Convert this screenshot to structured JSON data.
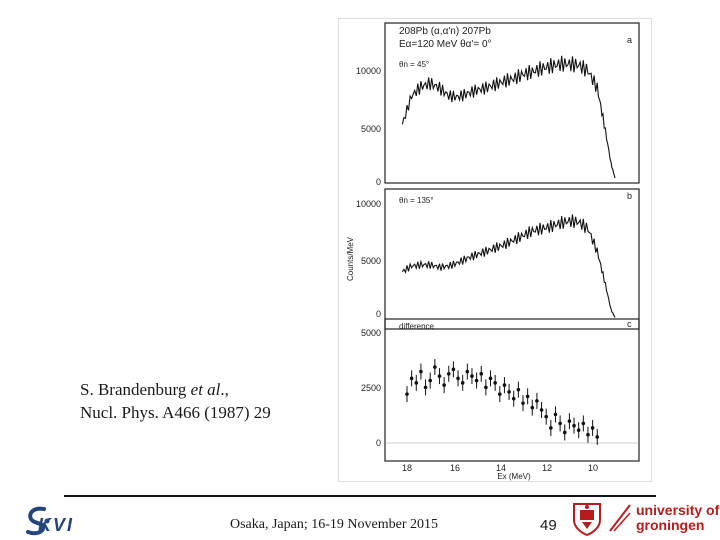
{
  "citation": {
    "line1_pre": "S. Brandenburg ",
    "line1_em": "et al",
    "line1_post": "., ",
    "line2": "Nucl. Phys. A466 (1987) 29"
  },
  "footer": {
    "text": "Osaka, Japan; 16-19 November 2015",
    "page": "49"
  },
  "logos": {
    "kvi": "KVI",
    "rug_line1": "university of",
    "rug_line2": "groningen"
  },
  "colors": {
    "kvi_blue": "#24457a",
    "rug_red": "#b71c1c"
  },
  "chart_data": [
    {
      "type": "line",
      "panel_letter": "a",
      "title_line1": "208Pb (α,α'n) 207Pb",
      "title_line2": "Eα=120 MeV    θα'= 0°",
      "annotation": "θn = 45°",
      "ylabel": "",
      "y_ticks": [
        "0",
        "5000",
        "10000"
      ],
      "ylim": [
        0,
        12500
      ],
      "x": [
        18.2,
        17.8,
        17.4,
        17.0,
        16.6,
        16.2,
        15.8,
        15.4,
        15.0,
        14.6,
        14.2,
        13.8,
        13.4,
        13.0,
        12.6,
        12.2,
        11.8,
        11.4,
        11.0,
        10.6,
        10.2,
        9.8,
        9.5,
        9.2,
        9.0
      ],
      "values": [
        5000,
        7500,
        8300,
        8600,
        8200,
        7500,
        7400,
        7700,
        8000,
        8200,
        8500,
        8800,
        9000,
        9400,
        9600,
        9900,
        10100,
        10300,
        10300,
        10200,
        9700,
        8200,
        5000,
        1500,
        0
      ]
    },
    {
      "type": "line",
      "panel_letter": "b",
      "annotation": "θn = 135°",
      "ylabel": "Counts/MeV",
      "y_ticks": [
        "0",
        "5000",
        "10000"
      ],
      "ylim": [
        0,
        11000
      ],
      "x": [
        18.2,
        17.8,
        17.4,
        17.0,
        16.6,
        16.2,
        15.8,
        15.4,
        15.0,
        14.6,
        14.2,
        13.8,
        13.4,
        13.0,
        12.6,
        12.2,
        11.8,
        11.4,
        11.0,
        10.6,
        10.2,
        9.8,
        9.5,
        9.2,
        9.0
      ],
      "values": [
        4200,
        4700,
        4800,
        4800,
        4600,
        4700,
        5000,
        5400,
        5700,
        6000,
        6300,
        6600,
        7000,
        7400,
        7800,
        8000,
        8200,
        8500,
        8700,
        8600,
        8000,
        6000,
        3500,
        800,
        0
      ]
    },
    {
      "type": "scatter",
      "panel_letter": "c",
      "annotation": "difference",
      "ylabel": "",
      "y_ticks": [
        "0",
        "2500",
        "5000"
      ],
      "ylim": [
        -500,
        5000
      ],
      "xlabel": "Ex (MeV)",
      "x_ticks": [
        "18",
        "16",
        "14",
        "12",
        "10"
      ],
      "xlim": [
        18.5,
        9.0
      ],
      "x": [
        18.0,
        17.8,
        17.6,
        17.4,
        17.2,
        17.0,
        16.8,
        16.6,
        16.4,
        16.2,
        16.0,
        15.8,
        15.6,
        15.4,
        15.2,
        15.0,
        14.8,
        14.6,
        14.4,
        14.2,
        14.0,
        13.8,
        13.6,
        13.4,
        13.2,
        13.0,
        12.8,
        12.6,
        12.4,
        12.2,
        12.0,
        11.8,
        11.6,
        11.4,
        11.2,
        11.0,
        10.8,
        10.6,
        10.4,
        10.2,
        10.0,
        9.8
      ],
      "values": [
        2200,
        2900,
        2700,
        3200,
        2500,
        2800,
        3400,
        3000,
        2600,
        3100,
        3300,
        2900,
        2700,
        3200,
        3000,
        2800,
        3100,
        2500,
        2900,
        2700,
        2200,
        2600,
        2300,
        2000,
        2400,
        1800,
        2100,
        1600,
        1900,
        1500,
        1200,
        700,
        1300,
        900,
        500,
        1000,
        800,
        600,
        900,
        400,
        700,
        300
      ]
    }
  ]
}
